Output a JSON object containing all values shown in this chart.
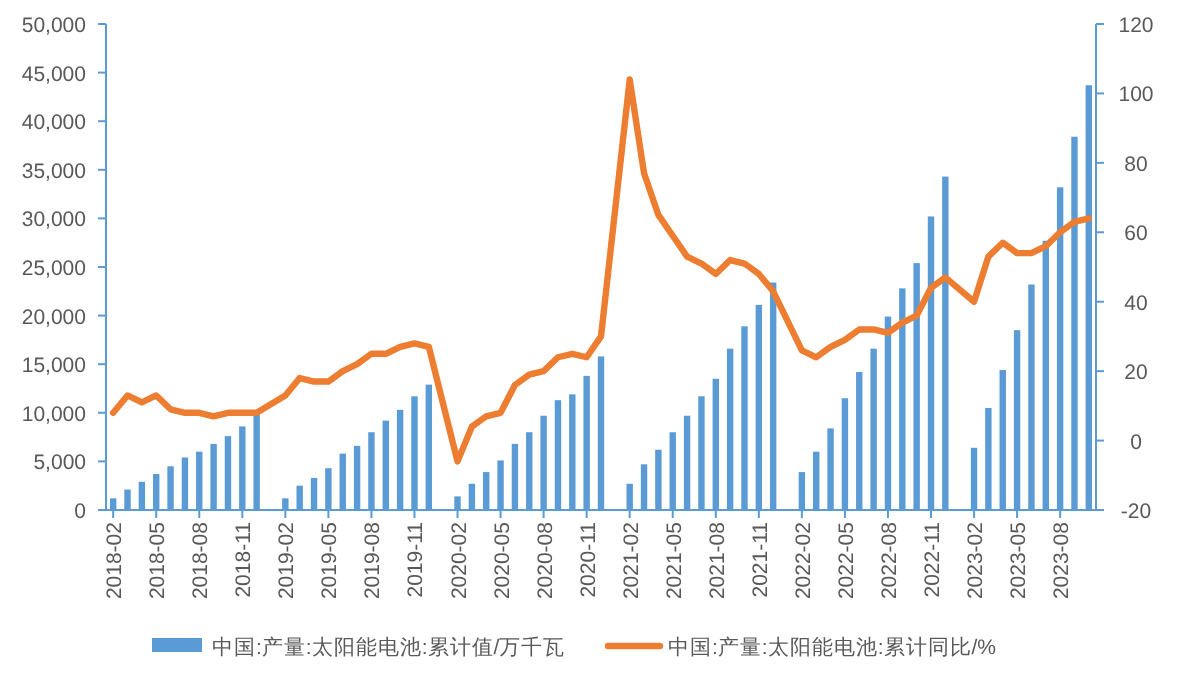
{
  "chart_data": {
    "type": "bar",
    "categories": [
      "2018-02",
      null,
      null,
      "2018-05",
      null,
      null,
      "2018-08",
      null,
      null,
      "2018-11",
      null,
      null,
      "2019-02",
      null,
      null,
      "2019-05",
      null,
      null,
      "2019-08",
      null,
      null,
      "2019-11",
      null,
      null,
      "2020-02",
      null,
      null,
      "2020-05",
      null,
      null,
      "2020-08",
      null,
      null,
      "2020-11",
      null,
      null,
      "2021-02",
      null,
      null,
      "2021-05",
      null,
      null,
      "2021-08",
      null,
      null,
      "2021-11",
      null,
      null,
      "2022-02",
      null,
      null,
      "2022-05",
      null,
      null,
      "2022-08",
      null,
      null,
      "2022-11",
      null,
      null,
      "2023-02",
      null,
      null,
      "2023-05",
      null,
      null,
      "2023-08",
      null,
      null
    ],
    "series": [
      {
        "name": "中国:产量:太阳能电池:累计值/万千瓦",
        "color": "#5b9bd5",
        "values": [
          1200,
          2100,
          2900,
          3700,
          4500,
          5400,
          6000,
          6800,
          7600,
          8600,
          9800,
          null,
          1200,
          2500,
          3300,
          4300,
          5800,
          6600,
          8000,
          9200,
          10300,
          11700,
          12900,
          null,
          1400,
          2700,
          3900,
          5100,
          6800,
          8000,
          9700,
          11300,
          11900,
          13800,
          15800,
          null,
          2700,
          4700,
          6200,
          8000,
          9700,
          11700,
          13500,
          16600,
          18900,
          21100,
          23400,
          null,
          3900,
          6000,
          8400,
          11500,
          14200,
          16600,
          19900,
          22800,
          25400,
          30200,
          34300,
          null,
          6400,
          10500,
          14400,
          18500,
          23200,
          27700,
          33200,
          38400,
          43700
        ]
      },
      {
        "name": "中国:产量:太阳能电池:累计同比/%",
        "type": "line",
        "axis": "y2",
        "color": "#ed7d31",
        "values": [
          8,
          13,
          11,
          13,
          9,
          8,
          8,
          7,
          8,
          8,
          8,
          null,
          13,
          18,
          17,
          17,
          20,
          22,
          25,
          25,
          27,
          28,
          27,
          null,
          -6,
          4,
          7,
          8,
          16,
          19,
          20,
          24,
          25,
          24,
          30,
          null,
          104,
          77,
          65,
          59,
          53,
          51,
          48,
          52,
          51,
          48,
          43,
          null,
          26,
          24,
          27,
          29,
          32,
          32,
          31,
          34,
          36,
          44,
          47,
          null,
          40,
          53,
          57,
          54,
          54,
          56,
          60,
          63,
          64
        ]
      }
    ],
    "ylim": [
      0,
      50000
    ],
    "yticks": [
      0,
      {
        "value": 5000,
        "label": "5,000"
      },
      {
        "value": 10000,
        "label": "10,000"
      },
      {
        "value": 15000,
        "label": "15,000"
      },
      {
        "value": 20000,
        "label": "20,000"
      },
      {
        "value": 25000,
        "label": "25,000"
      },
      {
        "value": 30000,
        "label": "30,000"
      },
      {
        "value": 35000,
        "label": "35,000"
      },
      {
        "value": 40000,
        "label": "40,000"
      },
      {
        "value": 45000,
        "label": "45,000"
      },
      {
        "value": 50000,
        "label": "50,000"
      }
    ],
    "y2lim": [
      -20,
      120
    ],
    "y2ticks": [
      -20,
      0,
      20,
      40,
      60,
      80,
      100,
      120
    ],
    "legend": "bottom",
    "marker": "none",
    "line_style": "solid"
  }
}
